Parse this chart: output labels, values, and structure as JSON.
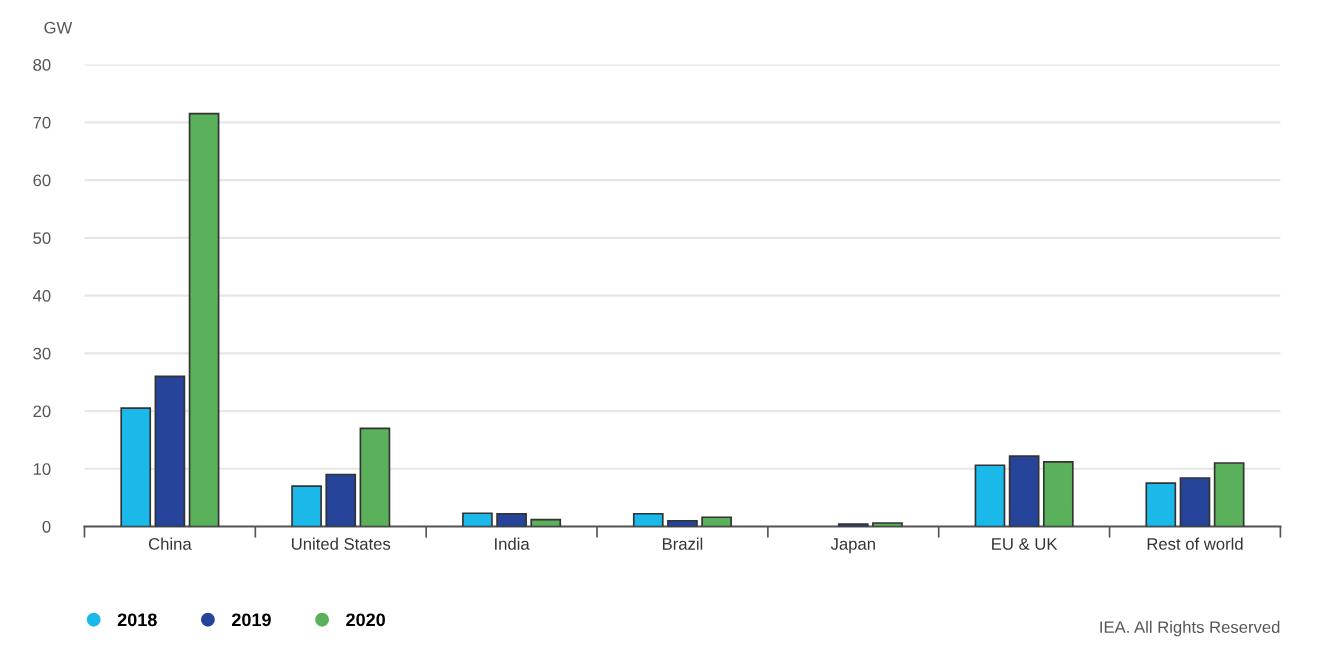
{
  "chart_data": {
    "type": "bar",
    "ylabel": "GW",
    "categories": [
      "China",
      "United States",
      "India",
      "Brazil",
      "Japan",
      "EU & UK",
      "Rest of world"
    ],
    "series": [
      {
        "name": "2018",
        "color": "#1bb8ea",
        "values": [
          20.5,
          7,
          2.3,
          2.2,
          null,
          10.6,
          7.5
        ]
      },
      {
        "name": "2019",
        "color": "#25449a",
        "values": [
          26,
          9,
          2.2,
          1.0,
          0.4,
          12.2,
          8.4
        ]
      },
      {
        "name": "2020",
        "color": "#5bb05b",
        "values": [
          71.5,
          17,
          1.2,
          1.6,
          0.6,
          11.2,
          11
        ]
      }
    ],
    "ylim": [
      0,
      80
    ],
    "yticks": [
      0,
      10,
      20,
      30,
      40,
      50,
      60,
      70,
      80
    ],
    "grid": "y",
    "legend": "bottom left",
    "annotations": [
      "IEA. All Rights Reserved"
    ]
  }
}
